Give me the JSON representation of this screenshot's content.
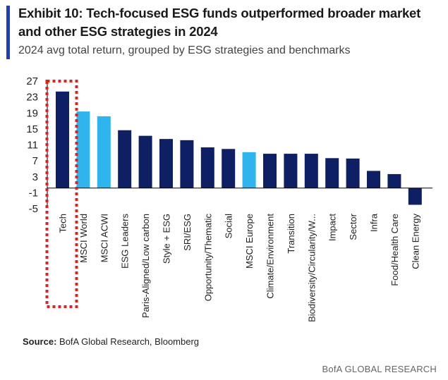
{
  "header": {
    "title": "Exhibit 10: Tech-focused ESG funds outperformed broader market and other ESG strategies in 2024",
    "subtitle": "2024 avg total return, grouped by ESG strategies and benchmarks"
  },
  "footer": {
    "source_label": "Source:",
    "source_text": "BofA Global Research, Bloomberg",
    "brand": "BofA GLOBAL RESEARCH"
  },
  "colors": {
    "dark_bar": "#0f1f63",
    "light_bar": "#2fb4ee",
    "highlight": "#e32020",
    "accent": "#1f3fae"
  },
  "chart_data": {
    "type": "bar",
    "title": "",
    "xlabel": "",
    "ylabel": "",
    "ylim": [
      -5,
      27
    ],
    "yticks": [
      27,
      23,
      19,
      15,
      11,
      7,
      3,
      -1,
      -5
    ],
    "grid": false,
    "highlighted_category": "Tech",
    "categories": [
      "Tech",
      "MSCI World",
      "MSCI ACWI",
      "ESG Leaders",
      "Paris-Aligned/Low carbon",
      "Style + ESG",
      "SRI/ESG",
      "Opportunity/Thematic",
      "Social",
      "MSCI Europe",
      "Climate/Environment",
      "Transition",
      "Biodiversity/Circularity/W...",
      "Impact",
      "Sector",
      "Infra",
      "Food/Health Care",
      "Clean Energy"
    ],
    "values": [
      24.2,
      19.2,
      18.0,
      14.5,
      13.1,
      12.3,
      12.0,
      10.2,
      9.8,
      9.0,
      8.6,
      8.6,
      8.6,
      7.5,
      7.4,
      4.3,
      3.5,
      -4.2
    ],
    "bar_colors": [
      "dark",
      "light",
      "light",
      "dark",
      "dark",
      "dark",
      "dark",
      "dark",
      "dark",
      "light",
      "dark",
      "dark",
      "dark",
      "dark",
      "dark",
      "dark",
      "dark",
      "dark"
    ]
  }
}
